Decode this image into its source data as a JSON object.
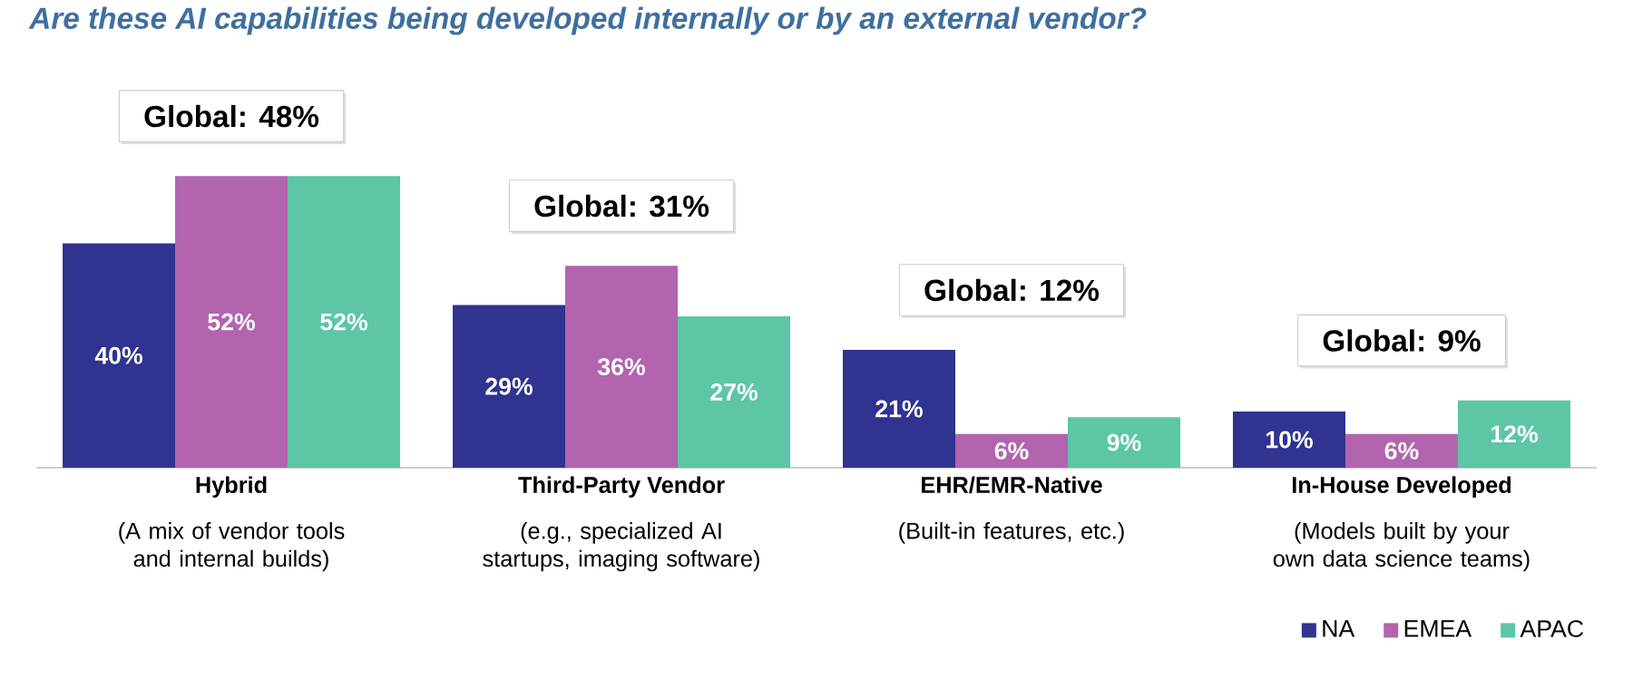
{
  "chart_data": {
    "type": "bar",
    "title": "Are these AI capabilities being developed internally or by an external vendor?",
    "categories": [
      "Hybrid",
      "Third-Party Vendor",
      "EHR/EMR-Native",
      "In-House Developed"
    ],
    "series": [
      {
        "name": "NA",
        "color": "#30338f",
        "values": [
          40,
          29,
          21,
          10
        ],
        "value_labels": [
          "40%",
          "29%",
          "21%",
          "10%"
        ]
      },
      {
        "name": "EMEA",
        "color": "#b264ae",
        "values": [
          52,
          36,
          6,
          6
        ],
        "value_labels": [
          "52%",
          "36%",
          "6%",
          "6%"
        ]
      },
      {
        "name": "APAC",
        "color": "#5cc6a6",
        "values": [
          52,
          27,
          9,
          12
        ],
        "value_labels": [
          "52%",
          "27%",
          "9%",
          "12%"
        ]
      }
    ],
    "annotations": [
      "Global: 48%",
      "Global: 31%",
      "Global: 12%",
      "Global: 9%",
      "(A mix of vendor tools and internal builds)",
      "(e.g., specialized AI startups, imaging software)",
      "(Built-in features, etc.)",
      "(Models built by your own data science teams)"
    ],
    "legend": "bottom right"
  }
}
